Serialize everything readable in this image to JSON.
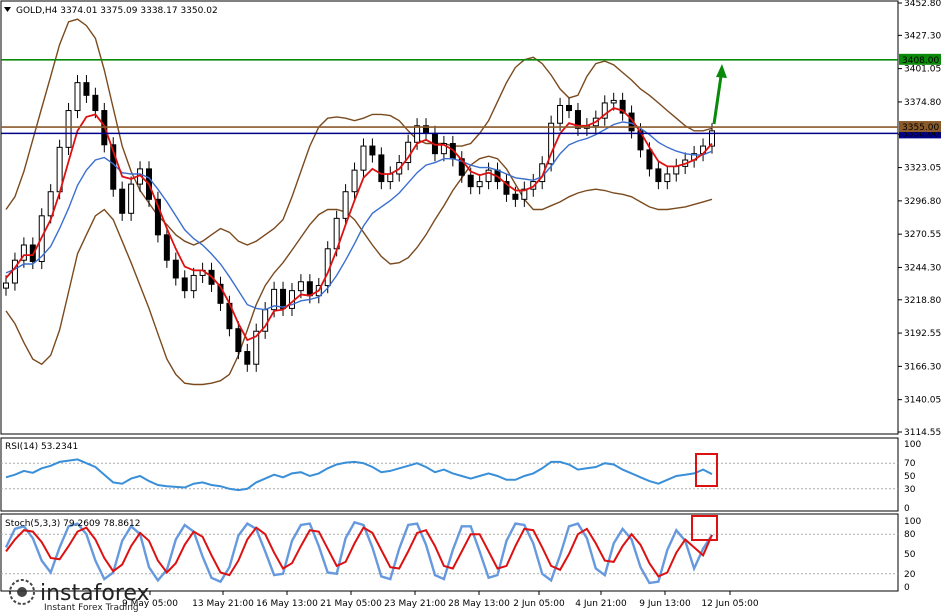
{
  "window": {
    "symbol_header": "GOLD,H4  3374.01 3375.09 3338.17 3350.02",
    "menu_icon": "triangle-down-icon"
  },
  "price_panel": {
    "price_ticks": [
      "3452.80",
      "3427.30",
      "3401.05",
      "3374.80",
      "3349.30",
      "3323.05",
      "3296.80",
      "3270.55",
      "3244.30",
      "3218.80",
      "3192.55",
      "3166.30",
      "3140.05",
      "3114.55"
    ],
    "ylim": [
      3114.55,
      3452.8
    ],
    "resistance_label": "3408.00",
    "resistance_level": 3408.0,
    "resistance_color": "#0a8a0a",
    "current_label": "3355.00",
    "current_level": 3355.0,
    "current_label_color": "#8b5a2b",
    "blue_line_label": "3350.00",
    "blue_line_level": 3350.0,
    "blue_line_color": "#00008b",
    "arrow_color": "#0a8a0a",
    "arrow_icon": "up-arrow-icon"
  },
  "rsi_panel": {
    "header": "RSI(14) 53.2341",
    "ticks": [
      "100",
      "70",
      "50",
      "30",
      "0"
    ],
    "levels": [
      100,
      70,
      50,
      30,
      0
    ],
    "line_color": "#3a8fd9"
  },
  "stoch_panel": {
    "header": "Stoch(5,3,3) 79.2609 78.8612",
    "ticks": [
      "100",
      "80",
      "50",
      "20",
      "0"
    ],
    "levels": [
      100,
      80,
      50,
      20,
      0
    ],
    "main_color": "#6699dd",
    "signal_color": "#dd1111"
  },
  "x_axis": {
    "labels": [
      "9 May 05:00",
      "13 May 21:00",
      "16 May 13:00",
      "21 May 05:00",
      "23 May 21:00",
      "28 May 13:00",
      "2 Jun 05:00",
      "4 Jun 21:00",
      "9 Jun 13:00",
      "12 Jun 05:00"
    ]
  },
  "watermark": {
    "brand": "instaforex",
    "tagline": "Instant Forex Trading",
    "logo_icon": "instaforex-logo-icon"
  },
  "chart_data": {
    "type": "candlestick",
    "symbol": "GOLD",
    "timeframe": "H4",
    "ohlc_last": {
      "open": 3374.01,
      "high": 3375.09,
      "low": 3338.17,
      "close": 3350.02
    },
    "ylim": [
      3114.55,
      3452.8
    ],
    "series": [
      {
        "name": "close",
        "values": [
          3232,
          3250,
          3262,
          3249,
          3285,
          3304,
          3339,
          3368,
          3390,
          3380,
          3368,
          3341,
          3306,
          3287,
          3310,
          3322,
          3298,
          3270,
          3250,
          3236,
          3226,
          3238,
          3242,
          3231,
          3216,
          3196,
          3178,
          3168,
          3194,
          3211,
          3227,
          3212,
          3226,
          3233,
          3222,
          3230,
          3259,
          3283,
          3304,
          3321,
          3340,
          3333,
          3312,
          3318,
          3327,
          3343,
          3356,
          3350,
          3334,
          3342,
          3330,
          3317,
          3308,
          3312,
          3321,
          3312,
          3302,
          3298,
          3306,
          3312,
          3326,
          3358,
          3372,
          3368,
          3354,
          3356,
          3362,
          3374,
          3376,
          3366,
          3352,
          3337,
          3322,
          3312,
          3318,
          3324,
          3329,
          3334,
          3340,
          3352
        ]
      },
      {
        "name": "ema_fast",
        "values": [
          3236,
          3244,
          3254,
          3254,
          3268,
          3282,
          3303,
          3328,
          3352,
          3363,
          3365,
          3356,
          3336,
          3316,
          3314,
          3317,
          3310,
          3293,
          3275,
          3259,
          3245,
          3242,
          3242,
          3237,
          3229,
          3216,
          3200,
          3187,
          3190,
          3198,
          3210,
          3211,
          3217,
          3223,
          3222,
          3226,
          3240,
          3258,
          3278,
          3297,
          3315,
          3322,
          3318,
          3318,
          3322,
          3331,
          3342,
          3345,
          3341,
          3341,
          3337,
          3329,
          3320,
          3317,
          3319,
          3316,
          3310,
          3305,
          3305,
          3308,
          3316,
          3334,
          3350,
          3358,
          3356,
          3356,
          3359,
          3365,
          3370,
          3368,
          3361,
          3351,
          3339,
          3328,
          3324,
          3324,
          3326,
          3329,
          3334,
          3342
        ]
      },
      {
        "name": "ema_slow",
        "values": [
          3240,
          3243,
          3247,
          3247,
          3253,
          3261,
          3275,
          3291,
          3309,
          3321,
          3329,
          3331,
          3326,
          3319,
          3318,
          3318,
          3315,
          3306,
          3296,
          3285,
          3274,
          3267,
          3262,
          3255,
          3247,
          3237,
          3226,
          3215,
          3212,
          3211,
          3214,
          3213,
          3215,
          3218,
          3219,
          3221,
          3228,
          3238,
          3250,
          3263,
          3277,
          3287,
          3292,
          3297,
          3303,
          3311,
          3319,
          3325,
          3327,
          3330,
          3330,
          3328,
          3325,
          3323,
          3323,
          3321,
          3318,
          3315,
          3314,
          3313,
          3316,
          3324,
          3334,
          3341,
          3344,
          3346,
          3349,
          3353,
          3357,
          3359,
          3358,
          3354,
          3349,
          3343,
          3339,
          3336,
          3334,
          3333,
          3333,
          3336
        ]
      },
      {
        "name": "bollinger_upper",
        "values": [
          3290,
          3300,
          3320,
          3345,
          3370,
          3395,
          3420,
          3438,
          3440,
          3435,
          3425,
          3400,
          3370,
          3340,
          3320,
          3305,
          3295,
          3285,
          3278,
          3270,
          3265,
          3262,
          3265,
          3270,
          3275,
          3272,
          3265,
          3262,
          3265,
          3270,
          3275,
          3282,
          3300,
          3320,
          3340,
          3355,
          3362,
          3363,
          3362,
          3360,
          3362,
          3365,
          3365,
          3364,
          3360,
          3352,
          3345,
          3342,
          3342,
          3342,
          3340,
          3340,
          3342,
          3350,
          3360,
          3375,
          3390,
          3402,
          3408,
          3410,
          3405,
          3396,
          3385,
          3378,
          3380,
          3395,
          3405,
          3407,
          3404,
          3398,
          3392,
          3385,
          3380,
          3374,
          3368,
          3362,
          3356,
          3352,
          3352,
          3354
        ]
      },
      {
        "name": "bollinger_lower",
        "values": [
          3210,
          3200,
          3185,
          3172,
          3168,
          3175,
          3195,
          3225,
          3255,
          3270,
          3285,
          3290,
          3282,
          3265,
          3248,
          3230,
          3212,
          3192,
          3172,
          3160,
          3153,
          3152,
          3152,
          3153,
          3155,
          3160,
          3175,
          3195,
          3215,
          3230,
          3240,
          3248,
          3258,
          3268,
          3278,
          3286,
          3290,
          3290,
          3288,
          3282,
          3272,
          3262,
          3253,
          3247,
          3248,
          3252,
          3260,
          3270,
          3282,
          3293,
          3305,
          3315,
          3325,
          3330,
          3332,
          3330,
          3322,
          3310,
          3298,
          3290,
          3290,
          3293,
          3296,
          3300,
          3303,
          3305,
          3306,
          3305,
          3303,
          3302,
          3300,
          3296,
          3292,
          3290,
          3290,
          3291,
          3292,
          3294,
          3296,
          3298
        ]
      },
      {
        "name": "rsi",
        "values": [
          48,
          52,
          58,
          55,
          62,
          66,
          72,
          74,
          76,
          70,
          64,
          52,
          40,
          38,
          46,
          50,
          42,
          36,
          34,
          33,
          32,
          38,
          40,
          36,
          34,
          30,
          28,
          30,
          40,
          46,
          52,
          48,
          54,
          56,
          50,
          54,
          62,
          68,
          71,
          72,
          70,
          64,
          56,
          58,
          62,
          66,
          70,
          64,
          56,
          60,
          54,
          50,
          46,
          50,
          54,
          50,
          44,
          44,
          50,
          54,
          62,
          72,
          72,
          68,
          60,
          62,
          64,
          70,
          68,
          60,
          54,
          48,
          42,
          38,
          44,
          50,
          52,
          54,
          60,
          53
        ]
      },
      {
        "name": "stoch_main",
        "values": [
          60,
          88,
          92,
          74,
          40,
          22,
          60,
          92,
          96,
          80,
          40,
          12,
          22,
          70,
          92,
          80,
          30,
          10,
          26,
          72,
          94,
          84,
          46,
          14,
          8,
          30,
          78,
          96,
          88,
          54,
          18,
          20,
          70,
          94,
          96,
          62,
          22,
          20,
          74,
          98,
          94,
          60,
          16,
          12,
          58,
          94,
          96,
          64,
          18,
          12,
          56,
          92,
          92,
          54,
          14,
          18,
          70,
          96,
          94,
          66,
          20,
          10,
          48,
          92,
          96,
          74,
          28,
          18,
          66,
          88,
          72,
          30,
          6,
          8,
          56,
          86,
          70,
          28,
          58,
          79
        ]
      },
      {
        "name": "stoch_signal",
        "values": [
          54,
          72,
          86,
          84,
          68,
          44,
          42,
          62,
          84,
          90,
          72,
          44,
          24,
          34,
          62,
          82,
          70,
          40,
          22,
          36,
          64,
          84,
          76,
          48,
          22,
          18,
          40,
          72,
          90,
          80,
          52,
          28,
          36,
          62,
          86,
          84,
          58,
          32,
          38,
          66,
          90,
          82,
          56,
          30,
          28,
          54,
          82,
          86,
          62,
          32,
          28,
          54,
          80,
          80,
          54,
          28,
          32,
          62,
          88,
          86,
          60,
          32,
          26,
          50,
          80,
          88,
          66,
          40,
          38,
          62,
          80,
          64,
          36,
          16,
          22,
          52,
          72,
          60,
          48,
          79
        ]
      }
    ],
    "x_labels": [
      "9 May 05:00",
      "13 May 21:00",
      "16 May 13:00",
      "21 May 05:00",
      "23 May 21:00",
      "28 May 13:00",
      "2 Jun 05:00",
      "4 Jun 21:00",
      "9 Jun 13:00",
      "12 Jun 05:00"
    ],
    "horizontal_levels": [
      3408.0,
      3355.0,
      3350.0
    ]
  }
}
